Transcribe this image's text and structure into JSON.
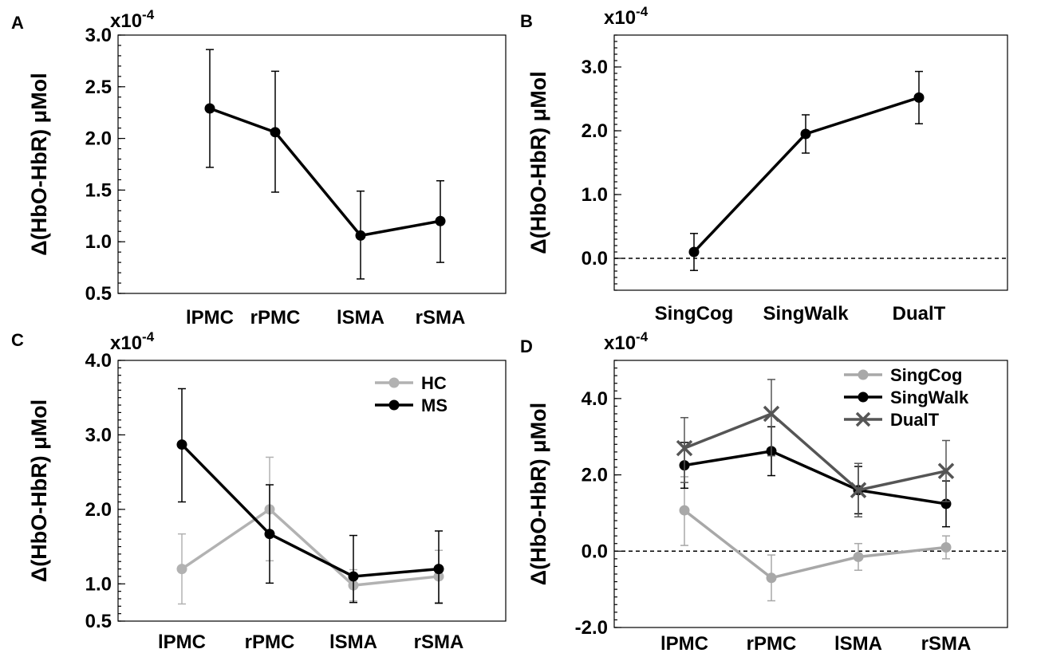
{
  "chart_data": [
    {
      "panel": "A",
      "type": "line",
      "ylabel": "Δ(HbO-HbR) μMol",
      "exponent": "x10-4",
      "ylim": [
        0.5,
        3.0
      ],
      "yticks": [
        0.5,
        1.0,
        1.5,
        2.0,
        2.5,
        3.0
      ],
      "ytick_labels": [
        "0.5",
        "1.0",
        "1.5",
        "2.0",
        "2.5",
        "3.0"
      ],
      "minor_step": 0.1,
      "categories": [
        "lPMC",
        "rPMC",
        "lSMA",
        "rSMA"
      ],
      "zero_line": false,
      "series": [
        {
          "name": "",
          "color": "#000000",
          "marker": "circle",
          "values": [
            2.29,
            2.06,
            1.06,
            1.2
          ],
          "err_low": [
            1.72,
            1.48,
            0.64,
            0.8
          ],
          "err_high": [
            2.86,
            2.65,
            1.49,
            1.59
          ]
        }
      ]
    },
    {
      "panel": "B",
      "type": "line",
      "ylabel": "Δ(HbO-HbR) μMol",
      "exponent": "x10-4",
      "ylim": [
        -0.5,
        3.5
      ],
      "yticks": [
        0.0,
        1.0,
        2.0,
        3.0
      ],
      "ytick_labels": [
        "0.0",
        "1.0",
        "2.0",
        "3.0"
      ],
      "minor_step": 0.1,
      "categories": [
        "SingCog",
        "SingWalk",
        "DualT"
      ],
      "zero_line": true,
      "series": [
        {
          "name": "",
          "color": "#000000",
          "marker": "circle",
          "values": [
            0.1,
            1.95,
            2.52
          ],
          "err_low": [
            -0.19,
            1.65,
            2.11
          ],
          "err_high": [
            0.39,
            2.25,
            2.93
          ]
        }
      ]
    },
    {
      "panel": "C",
      "type": "line",
      "ylabel": "Δ(HbO-HbR) μMol",
      "exponent": "x10-4",
      "ylim": [
        0.5,
        4.0
      ],
      "yticks": [
        0.5,
        1.0,
        2.0,
        3.0,
        4.0
      ],
      "ytick_labels": [
        "0.5",
        "1.0",
        "2.0",
        "3.0",
        "4.0"
      ],
      "minor_step": 0.1,
      "categories": [
        "lPMC",
        "rPMC",
        "lSMA",
        "rSMA"
      ],
      "zero_line": false,
      "legend_position": "top-right",
      "series": [
        {
          "name": "HC",
          "color": "#b2b2b2",
          "marker": "circle",
          "values": [
            1.2,
            2.0,
            0.98,
            1.1
          ],
          "err_low": [
            0.73,
            1.31,
            0.77,
            0.75
          ],
          "err_high": [
            1.67,
            2.7,
            1.19,
            1.45
          ]
        },
        {
          "name": "MS",
          "color": "#000000",
          "marker": "circle",
          "values": [
            2.87,
            1.67,
            1.1,
            1.2
          ],
          "err_low": [
            2.1,
            1.01,
            0.75,
            0.74
          ],
          "err_high": [
            3.62,
            2.33,
            1.65,
            1.71
          ]
        }
      ]
    },
    {
      "panel": "D",
      "type": "line",
      "ylabel": "Δ(HbO-HbR) μMol",
      "exponent": "x10-4",
      "ylim": [
        -2.0,
        5.0
      ],
      "yticks": [
        -2.0,
        0.0,
        2.0,
        4.0
      ],
      "ytick_labels": [
        "-2.0",
        "0.0",
        "2.0",
        "4.0"
      ],
      "minor_step": 0.2,
      "categories": [
        "lPMC",
        "rPMC",
        "lSMA",
        "rSMA"
      ],
      "zero_line": true,
      "legend_position": "top-right",
      "series": [
        {
          "name": "SingCog",
          "color": "#a8a8a8",
          "marker": "circle",
          "values": [
            1.07,
            -0.7,
            -0.15,
            0.1
          ],
          "err_low": [
            0.15,
            -1.3,
            -0.5,
            -0.2
          ],
          "err_high": [
            1.95,
            -0.1,
            0.2,
            0.4
          ]
        },
        {
          "name": "SingWalk",
          "color": "#000000",
          "marker": "circle",
          "values": [
            2.25,
            2.62,
            1.6,
            1.24
          ],
          "err_low": [
            1.65,
            1.98,
            0.98,
            0.64
          ],
          "err_high": [
            2.85,
            3.26,
            2.22,
            1.84
          ]
        },
        {
          "name": "DualT",
          "color": "#555555",
          "marker": "x",
          "values": [
            2.7,
            3.6,
            1.6,
            2.1
          ],
          "err_low": [
            1.8,
            2.5,
            0.9,
            1.3
          ],
          "err_high": [
            3.5,
            4.5,
            2.3,
            2.9
          ]
        }
      ]
    }
  ]
}
